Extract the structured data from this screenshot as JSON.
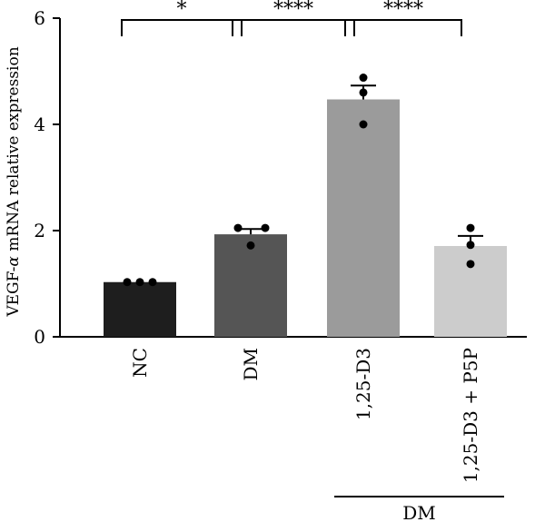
{
  "chart_data": {
    "type": "bar",
    "ylabel_prefix": "VEGF-",
    "ylabel_symbol": "α",
    "ylabel_suffix": " mRNA relative expression",
    "categories": [
      "NC",
      "DM",
      "1,25-D3",
      "1,25-D3 + P5P"
    ],
    "values": [
      1.03,
      1.93,
      4.47,
      1.71
    ],
    "sem": [
      0.0,
      0.1,
      0.26,
      0.19
    ],
    "points": [
      [
        1.03,
        1.03,
        1.03
      ],
      [
        2.05,
        2.05,
        1.72
      ],
      [
        4.88,
        4.6,
        4.0
      ],
      [
        2.05,
        1.73,
        1.37
      ]
    ],
    "colors": [
      "#1e1e1e",
      "#555555",
      "#9b9b9b",
      "#cccccc"
    ],
    "ylim": [
      0,
      6
    ],
    "yticks": [
      0,
      2,
      4,
      6
    ],
    "group_label": "DM",
    "group_members": [
      "1,25-D3",
      "1,25-D3 + P5P"
    ],
    "significance": [
      {
        "from": "NC",
        "to": "DM",
        "label": "*"
      },
      {
        "from": "DM",
        "to": "1,25-D3",
        "label": "****"
      },
      {
        "from": "1,25-D3",
        "to": "1,25-D3 + P5P",
        "label": "****"
      }
    ]
  }
}
